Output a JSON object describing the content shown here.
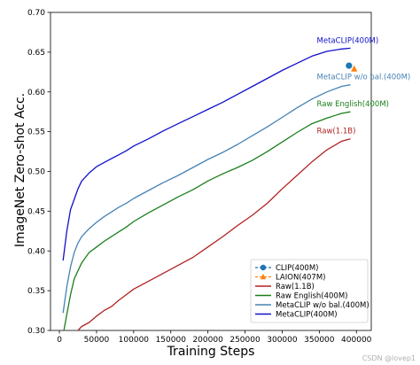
{
  "watermark": "CSDN @lovep1",
  "chart_data": {
    "type": "line",
    "xlabel": "Training Steps",
    "ylabel": "ImageNet Zero-shot Acc.",
    "xlim": [
      -12000,
      420000
    ],
    "ylim": [
      0.3,
      0.7
    ],
    "xticks": [
      0,
      50000,
      100000,
      150000,
      200000,
      250000,
      300000,
      350000,
      400000
    ],
    "yticks": [
      0.3,
      0.35,
      0.4,
      0.45,
      0.5,
      0.55,
      0.6,
      0.65,
      0.7
    ],
    "grid": false,
    "legend_position": "lower-right",
    "series": [
      {
        "name": "CLIP(400M)",
        "kind": "point",
        "color": "#1f77b4",
        "marker": "circle",
        "x": [
          390000
        ],
        "y": [
          0.633
        ]
      },
      {
        "name": "LAION(407M)",
        "kind": "point",
        "color": "#ff7f0e",
        "marker": "triangle",
        "x": [
          397000
        ],
        "y": [
          0.629
        ]
      },
      {
        "name": "Raw(1.1B)",
        "kind": "line",
        "color": "#b22222",
        "annotation": "Raw(1.1B)",
        "x": [
          0,
          10000,
          20000,
          30000,
          40000,
          50000,
          60000,
          70000,
          80000,
          90000,
          100000,
          120000,
          140000,
          160000,
          180000,
          200000,
          220000,
          240000,
          260000,
          280000,
          300000,
          320000,
          340000,
          360000,
          380000,
          392000
        ],
        "y": [
          0.27,
          0.285,
          0.295,
          0.305,
          0.31,
          0.318,
          0.325,
          0.33,
          0.338,
          0.345,
          0.352,
          0.362,
          0.372,
          0.382,
          0.392,
          0.405,
          0.418,
          0.432,
          0.445,
          0.46,
          0.478,
          0.495,
          0.512,
          0.527,
          0.538,
          0.541
        ]
      },
      {
        "name": "Raw English(400M)",
        "kind": "line",
        "color": "#1a7f1a",
        "annotation": "Raw English(400M)",
        "x": [
          6000,
          10000,
          15000,
          20000,
          25000,
          30000,
          40000,
          50000,
          60000,
          70000,
          80000,
          90000,
          100000,
          120000,
          140000,
          160000,
          180000,
          200000,
          220000,
          240000,
          260000,
          280000,
          300000,
          320000,
          340000,
          360000,
          380000,
          392000
        ],
        "y": [
          0.3,
          0.32,
          0.345,
          0.365,
          0.375,
          0.385,
          0.398,
          0.405,
          0.412,
          0.418,
          0.424,
          0.43,
          0.437,
          0.448,
          0.458,
          0.468,
          0.477,
          0.488,
          0.497,
          0.505,
          0.514,
          0.525,
          0.537,
          0.549,
          0.56,
          0.567,
          0.573,
          0.575
        ]
      },
      {
        "name": "MetaCLIP w/o bal.(400M)",
        "kind": "line",
        "color": "#4682b4",
        "annotation": "MetaCLIP w/o bal.(400M)",
        "x": [
          5000,
          10000,
          15000,
          20000,
          25000,
          30000,
          40000,
          50000,
          60000,
          70000,
          80000,
          90000,
          100000,
          120000,
          140000,
          160000,
          180000,
          200000,
          220000,
          240000,
          260000,
          280000,
          300000,
          320000,
          340000,
          360000,
          380000,
          392000
        ],
        "y": [
          0.322,
          0.355,
          0.38,
          0.398,
          0.41,
          0.418,
          0.428,
          0.436,
          0.443,
          0.449,
          0.455,
          0.46,
          0.466,
          0.476,
          0.486,
          0.495,
          0.505,
          0.515,
          0.524,
          0.534,
          0.545,
          0.556,
          0.568,
          0.58,
          0.591,
          0.6,
          0.607,
          0.609
        ]
      },
      {
        "name": "MetaCLIP(400M)",
        "kind": "line",
        "color": "#1010cc",
        "annotation": "MetaCLIP(400M)",
        "x": [
          5000,
          10000,
          15000,
          20000,
          25000,
          30000,
          40000,
          50000,
          60000,
          70000,
          80000,
          90000,
          100000,
          120000,
          140000,
          160000,
          180000,
          200000,
          220000,
          240000,
          260000,
          280000,
          300000,
          320000,
          340000,
          360000,
          380000,
          392000
        ],
        "y": [
          0.388,
          0.425,
          0.452,
          0.465,
          0.478,
          0.488,
          0.498,
          0.506,
          0.511,
          0.516,
          0.521,
          0.526,
          0.532,
          0.541,
          0.551,
          0.56,
          0.569,
          0.578,
          0.587,
          0.597,
          0.607,
          0.617,
          0.627,
          0.636,
          0.645,
          0.651,
          0.654,
          0.655
        ]
      }
    ],
    "legend_order": [
      "CLIP(400M)",
      "LAION(407M)",
      "Raw(1.1B)",
      "Raw English(400M)",
      "MetaCLIP w/o bal.(400M)",
      "MetaCLIP(400M)"
    ]
  }
}
